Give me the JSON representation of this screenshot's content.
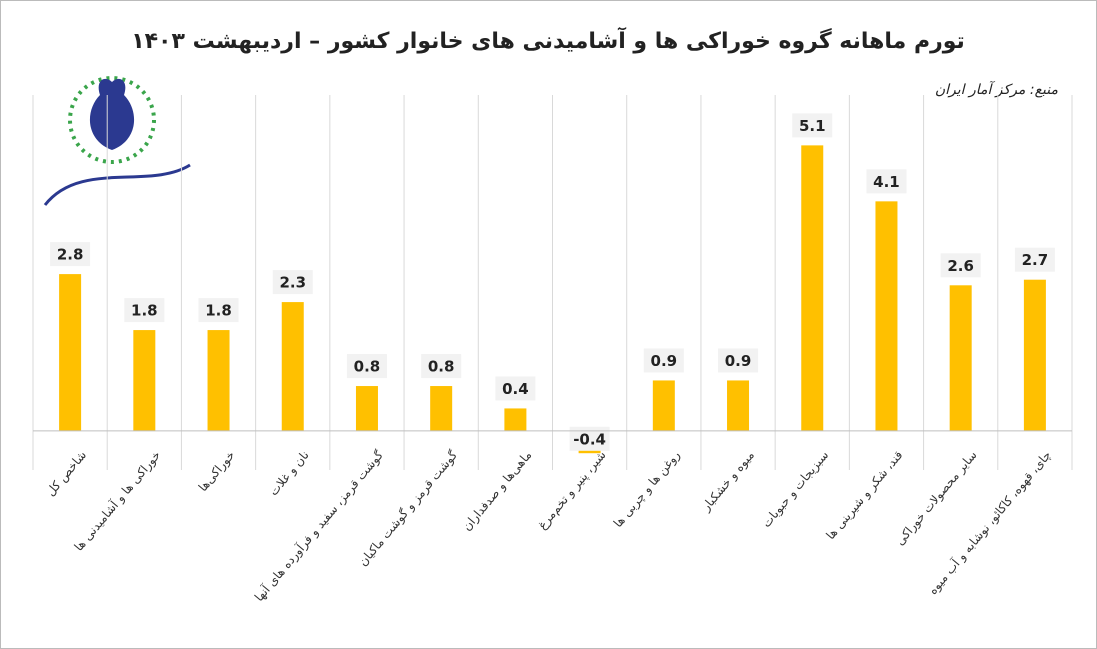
{
  "chart_data": {
    "type": "bar",
    "title": "تورم ماهانه گروه خوراکی ها و آشامیدنی های خانوار کشور – اردیبهشت ۱۴۰۳",
    "source": "منبع: مرکز آمار ایران",
    "categories": [
      "شاخص کل",
      "خوراکی ها و آشامیدنی ها",
      "خوراکی‌ها",
      "نان و غلات",
      "گوشت قرمز، سفید و فرآورده های آنها",
      "گوشت قرمز و گوشت ماکیان",
      "ماهی‌ها و صدفداران",
      "شیر، پنیر و تخم‌مرغ",
      "روغن ها و چربی ها",
      "میوه و خشکبار",
      "سبزیجات و حبوبات",
      "قند، شکر و شیرینی ها",
      "سایر محصولات خوراکی",
      "چای، قهوه، کاکائو، نوشابه و آب میوه"
    ],
    "values": [
      2.8,
      1.8,
      1.8,
      2.3,
      0.8,
      0.8,
      0.4,
      -0.4,
      0.9,
      0.9,
      5.1,
      4.1,
      2.6,
      2.7
    ],
    "color": "#ffc000",
    "ylim": [
      -0.7,
      6
    ],
    "grid": true
  }
}
